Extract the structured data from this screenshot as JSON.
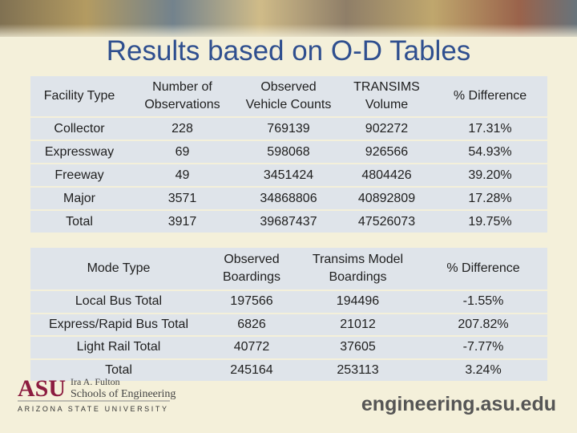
{
  "title": "Results based on O-D Tables",
  "table1": {
    "header": [
      "Facility Type",
      "Number of Observations",
      "Observed Vehicle Counts",
      "TRANSIMS Volume",
      "% Difference"
    ],
    "rows": [
      [
        "Collector",
        "228",
        "769139",
        "902272",
        "17.31%"
      ],
      [
        "Expressway",
        "69",
        "598068",
        "926566",
        "54.93%"
      ],
      [
        "Freeway",
        "49",
        "3451424",
        "4804426",
        "39.20%"
      ],
      [
        "Major",
        "3571",
        "34868806",
        "40892809",
        "17.28%"
      ],
      [
        "Total",
        "3917",
        "39687437",
        "47526073",
        "19.75%"
      ]
    ]
  },
  "table2": {
    "header": [
      "Mode Type",
      "Observed Boardings",
      "Transims Model Boardings",
      "% Difference"
    ],
    "rows": [
      [
        "Local Bus Total",
        "197566",
        "194496",
        "-1.55%"
      ],
      [
        "Express/Rapid Bus Total",
        "6826",
        "21012",
        "207.82%"
      ],
      [
        "Light Rail Total",
        "40772",
        "37605",
        "-7.77%"
      ],
      [
        "Total",
        "245164",
        "253113",
        "3.24%"
      ]
    ]
  },
  "footer": {
    "logo": "ASU",
    "school_line1": "Ira A. Fulton",
    "school_line2": "Schools of Engineering",
    "university": "ARIZONA STATE UNIVERSITY",
    "url": "engineering.asu.edu"
  }
}
